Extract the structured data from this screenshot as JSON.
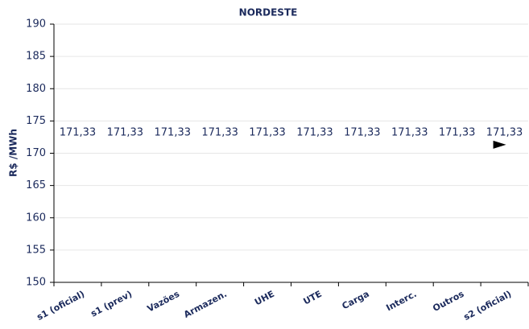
{
  "chart_data": {
    "type": "waterfall",
    "title": "NORDESTE",
    "y_label": "R$ /MWh",
    "categories": [
      "s1 (oficial)",
      "s1 (prev)",
      "Vazões",
      "Armazen.",
      "UHE",
      "UTE",
      "Carga",
      "Interc.",
      "Outros",
      "s2 (oficial)"
    ],
    "values": [
      171.33,
      171.33,
      171.33,
      171.33,
      171.33,
      171.33,
      171.33,
      171.33,
      171.33,
      171.33
    ],
    "value_labels": [
      "171,33",
      "171,33",
      "171,33",
      "171,33",
      "171,33",
      "171,33",
      "171,33",
      "171,33",
      "171,33",
      "171,33"
    ],
    "ylim": [
      150,
      190
    ],
    "yticks": [
      150,
      155,
      160,
      165,
      170,
      175,
      180,
      185,
      190
    ],
    "grid": true,
    "color": "#000000"
  }
}
